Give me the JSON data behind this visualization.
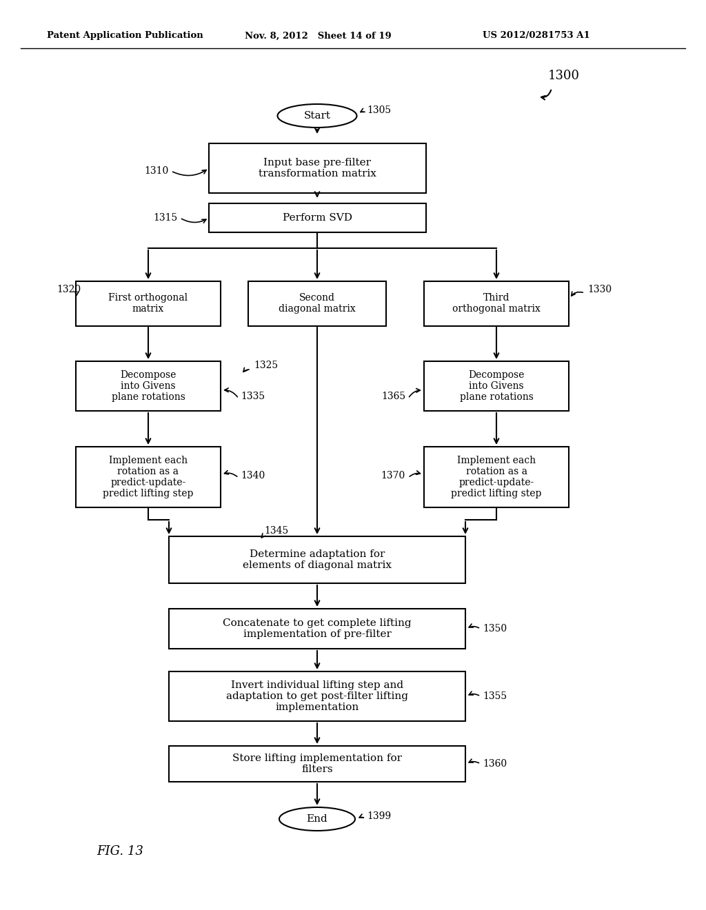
{
  "bg_color": "#ffffff",
  "header_left": "Patent Application Publication",
  "header_mid": "Nov. 8, 2012   Sheet 14 of 19",
  "header_right": "US 2012/0281753 A1",
  "fig_label": "FIG. 13",
  "diagram_id": "1300",
  "start_text": "Start",
  "end_text": "End",
  "n1305": "1305",
  "n1310": "1310",
  "n1315": "1315",
  "n1320": "1320",
  "n1325": "1325",
  "n1330": "1330",
  "n1335": "1335",
  "n1340": "1340",
  "n1345": "1345",
  "n1350": "1350",
  "n1355": "1355",
  "n1360": "1360",
  "n1365": "1365",
  "n1370": "1370",
  "n1399": "1399",
  "t1310": "Input base pre-filter\ntransformation matrix",
  "t1315": "Perform SVD",
  "t1320": "First orthogonal\nmatrix",
  "t1325": "Second\ndiagonal matrix",
  "t1330": "Third\northogonal matrix",
  "t1335": "Decompose\ninto Givens\nplane rotations",
  "t1340": "Implement each\nrotation as a\npredict-update-\npredict lifting step",
  "t1345": "Determine adaptation for\nelements of diagonal matrix",
  "t1350": "Concatenate to get complete lifting\nimplementation of pre-filter",
  "t1355": "Invert individual lifting step and\nadaptation to get post-filter lifting\nimplementation",
  "t1360": "Store lifting implementation for\nfilters",
  "t1365": "Decompose\ninto Givens\nplane rotations",
  "t1370": "Implement each\nrotation as a\npredict-update-\npredict lifting step"
}
